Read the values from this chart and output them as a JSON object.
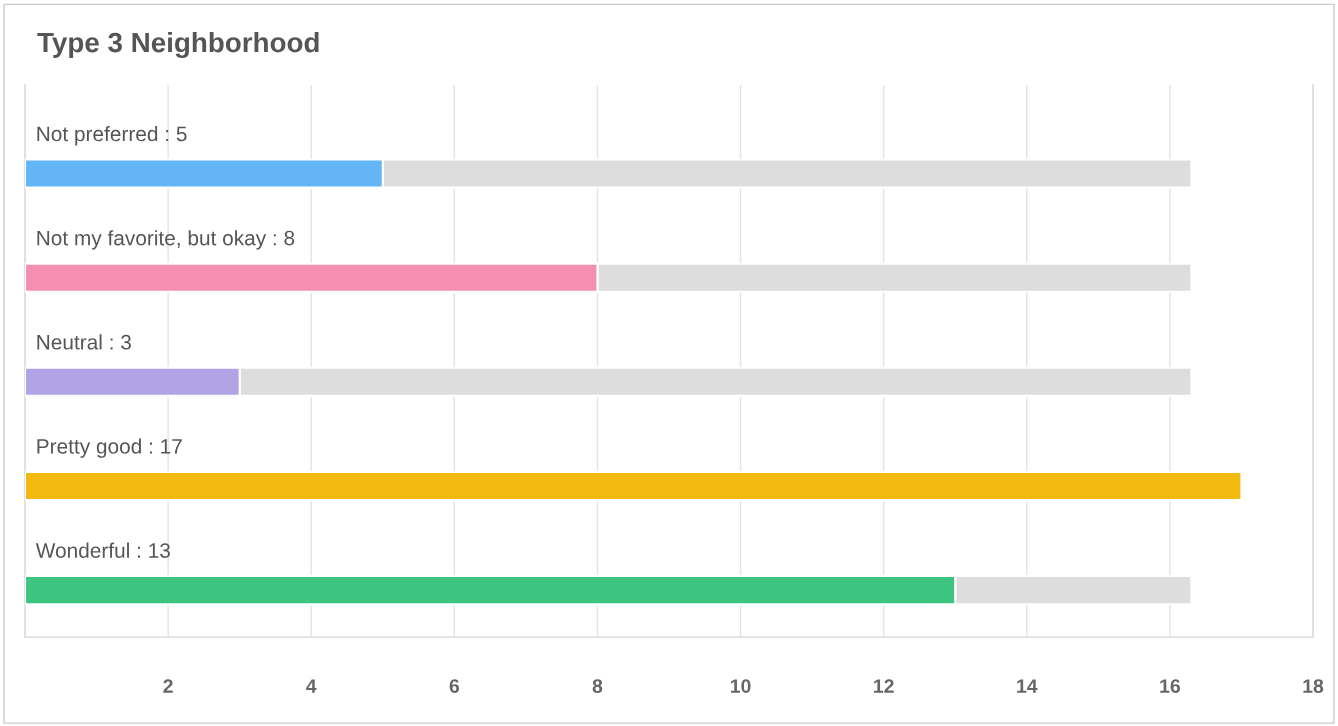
{
  "chart_data": {
    "type": "bar",
    "orientation": "horizontal",
    "stacked": true,
    "title": "Type 3 Neighborhood",
    "categories": [
      "Not preferred : 5",
      "Not my favorite, but okay : 8",
      "Neutral : 3",
      "Pretty good : 17",
      "Wonderful : 13"
    ],
    "series": [
      {
        "colors": [
          "#64b5f6",
          "#f48fb1",
          "#b0a4e6",
          "#f2b90f",
          "#3dc480"
        ],
        "values": [
          5,
          8,
          3,
          17,
          13
        ]
      },
      {
        "color": "#dddddd",
        "values": [
          11.3,
          8.3,
          13.3,
          null,
          3.3
        ]
      }
    ],
    "xlim": [
      0,
      18
    ],
    "xticks": [
      2,
      4,
      6,
      8,
      10,
      12,
      14,
      16,
      18
    ],
    "grid": "x",
    "legend": false
  }
}
